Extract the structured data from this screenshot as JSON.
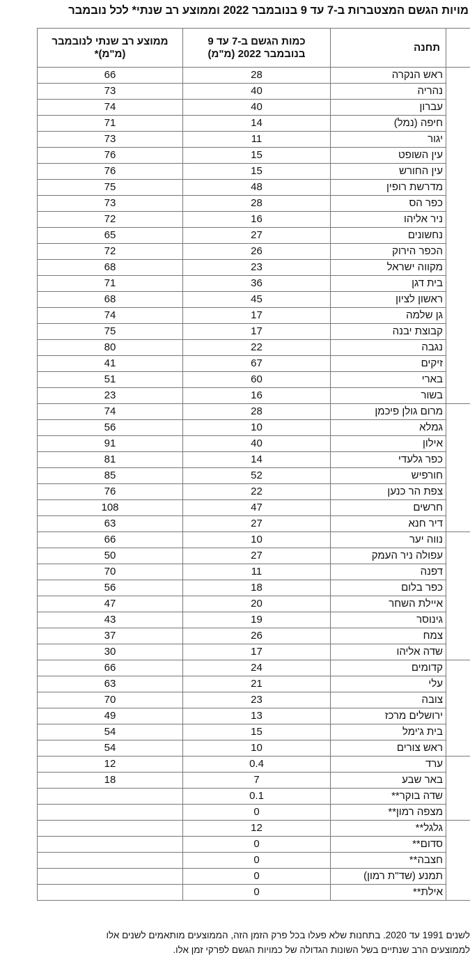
{
  "title": "מויות הגשם המצטברות ב-7 עד 9 בנובמבר 2022 וממוצע רב שנתי* לכל נובמבר",
  "columns": {
    "station": "תחנה",
    "rain": "כמות הגשם ב-7 עד 9 בנובמבר 2022 (מ\"מ)",
    "average": "ממוצע רב שנתי לנובמבר (מ\"מ)*"
  },
  "groups": [
    {
      "rows": [
        {
          "station": "ראש הנקרה",
          "rain": "28",
          "average": "66"
        },
        {
          "station": "נהריה",
          "rain": "40",
          "average": "73"
        },
        {
          "station": "עברון",
          "rain": "40",
          "average": "74"
        },
        {
          "station": "חיפה (נמל)",
          "rain": "14",
          "average": "71"
        },
        {
          "station": "יגור",
          "rain": "11",
          "average": "73"
        },
        {
          "station": "עין השופט",
          "rain": "15",
          "average": "76"
        },
        {
          "station": "עין החורש",
          "rain": "15",
          "average": "76"
        },
        {
          "station": "מדרשת רופין",
          "rain": "48",
          "average": "75"
        },
        {
          "station": "כפר הס",
          "rain": "28",
          "average": "73"
        },
        {
          "station": "ניר אליהו",
          "rain": "16",
          "average": "72"
        },
        {
          "station": "נחשונים",
          "rain": "27",
          "average": "65"
        },
        {
          "station": "הכפר הירוק",
          "rain": "26",
          "average": "72"
        },
        {
          "station": "מקווה ישראל",
          "rain": "23",
          "average": "68"
        },
        {
          "station": "בית דגן",
          "rain": "36",
          "average": "71"
        },
        {
          "station": "ראשון לציון",
          "rain": "45",
          "average": "68"
        },
        {
          "station": "גן שלמה",
          "rain": "17",
          "average": "74"
        },
        {
          "station": "קבוצת יבנה",
          "rain": "17",
          "average": "75"
        },
        {
          "station": "נגבה",
          "rain": "22",
          "average": "80"
        },
        {
          "station": "זיקים",
          "rain": "67",
          "average": "41"
        },
        {
          "station": "בארי",
          "rain": "60",
          "average": "51"
        },
        {
          "station": "בשור",
          "rain": "16",
          "average": "23"
        }
      ]
    },
    {
      "rows": [
        {
          "station": "מרום גולן פיכמן",
          "rain": "28",
          "average": "74"
        },
        {
          "station": "גמלא",
          "rain": "10",
          "average": "56"
        },
        {
          "station": "אילון",
          "rain": "40",
          "average": "91"
        },
        {
          "station": "כפר גלעדי",
          "rain": "14",
          "average": "81"
        },
        {
          "station": "חורפיש",
          "rain": "52",
          "average": "85"
        },
        {
          "station": "צפת הר כנען",
          "rain": "22",
          "average": "76"
        },
        {
          "station": "חרשים",
          "rain": "47",
          "average": "108"
        },
        {
          "station": "דיר חנא",
          "rain": "27",
          "average": "63"
        }
      ]
    },
    {
      "rows": [
        {
          "station": "נווה יער",
          "rain": "10",
          "average": "66"
        },
        {
          "station": "עפולה ניר העמק",
          "rain": "27",
          "average": "50"
        },
        {
          "station": "דפנה",
          "rain": "11",
          "average": "70"
        },
        {
          "station": "כפר בלום",
          "rain": "18",
          "average": "56"
        },
        {
          "station": "איילת השחר",
          "rain": "20",
          "average": "47"
        },
        {
          "station": "גינוסר",
          "rain": "19",
          "average": "43"
        },
        {
          "station": "צמח",
          "rain": "26",
          "average": "37"
        },
        {
          "station": "שדה אליהו",
          "rain": "17",
          "average": "30"
        }
      ]
    },
    {
      "rows": [
        {
          "station": "קדומים",
          "rain": "24",
          "average": "66"
        },
        {
          "station": "עלי",
          "rain": "21",
          "average": "63"
        },
        {
          "station": "צובה",
          "rain": "23",
          "average": "70"
        },
        {
          "station": "ירושלים מרכז",
          "rain": "13",
          "average": "49"
        },
        {
          "station": "בית ג'ימל",
          "rain": "15",
          "average": "54"
        },
        {
          "station": "ראש צורים",
          "rain": "10",
          "average": "54"
        }
      ]
    },
    {
      "rows": [
        {
          "station": "ערד",
          "rain": "0.4",
          "average": "12"
        },
        {
          "station": "באר שבע",
          "rain": "7",
          "average": "18"
        },
        {
          "station": "שדה בוקר**",
          "rain": "0.1",
          "average": ""
        },
        {
          "station": "מצפה רמון**",
          "rain": "0",
          "average": ""
        }
      ]
    },
    {
      "rows": [
        {
          "station": "גלגל**",
          "rain": "12",
          "average": ""
        },
        {
          "station": "סדום**",
          "rain": "0",
          "average": ""
        },
        {
          "station": "חצבה**",
          "rain": "0",
          "average": ""
        },
        {
          "station": "תמנע (שד\"ת רמון)",
          "rain": "0",
          "average": ""
        },
        {
          "station": "אילת**",
          "rain": "0",
          "average": ""
        }
      ]
    }
  ],
  "footnote": [
    "לשנים 1991 עד 2020. בתחנות שלא פעלו בכל פרק הזמן הזה, הממוצעים מותאמים לשנים אלו",
    "לממוצעים הרב שנתיים בשל השונות הגדולה של כמויות הגשם לפרקי זמן אלו."
  ]
}
